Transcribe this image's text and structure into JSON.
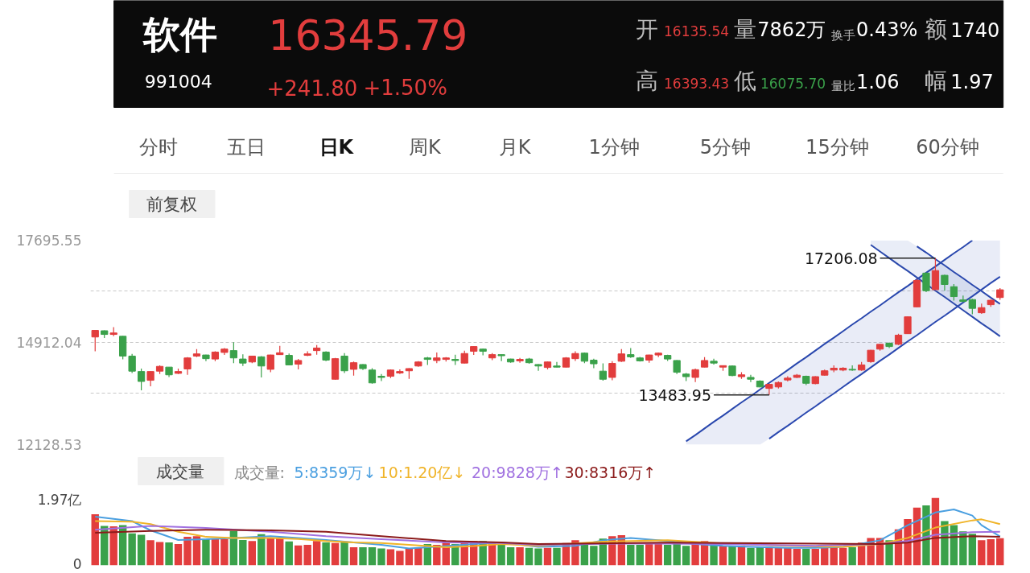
{
  "chart_data": [
    {
      "type": "other",
      "title": "软件",
      "subtitle": "991004",
      "annotations": [
        "16345.79",
        "+241.80",
        "+1.50%",
        "开",
        "16135.54",
        "量",
        "7862万",
        "换手",
        "0.43%",
        "额",
        "1740",
        "高",
        "16393.43",
        "低",
        "16075.70",
        "量比",
        "1.06",
        "幅",
        "1.97",
        "分时",
        "五日",
        "日K",
        "周K",
        "月K",
        "1分钟",
        "5分钟",
        "15分钟",
        "60分钟",
        "前复权"
      ]
    },
    {
      "type": "candlestick",
      "categories": [
        null,
        null,
        null,
        null,
        null,
        null,
        null,
        null,
        null,
        null,
        null,
        null,
        null,
        null,
        null,
        null,
        null,
        null,
        null,
        null,
        null,
        null,
        null,
        null,
        null,
        null,
        null,
        null,
        null,
        null,
        null,
        null,
        null,
        null,
        null,
        null,
        null,
        null,
        null,
        null,
        null,
        null,
        null,
        null,
        null,
        null,
        null,
        null,
        null,
        null,
        null,
        null,
        null,
        null,
        null,
        null,
        null,
        null,
        null,
        null,
        null,
        null,
        null,
        null,
        null,
        null,
        null,
        null,
        null,
        null,
        null,
        null,
        null,
        null,
        null,
        null,
        null,
        null,
        null,
        null,
        null,
        null,
        null,
        null,
        null,
        null,
        null,
        null,
        null,
        null,
        null,
        null,
        null,
        null,
        null,
        null,
        null,
        null,
        null
      ],
      "ohlc": [
        [
          15060,
          15240,
          14670,
          15240
        ],
        [
          15230,
          15240,
          15030,
          15130
        ],
        [
          15130,
          15330,
          15080,
          15170
        ],
        [
          15080,
          15090,
          14450,
          14540
        ],
        [
          14540,
          14600,
          14080,
          14130
        ],
        [
          14120,
          14200,
          13610,
          13850
        ],
        [
          13880,
          14130,
          13720,
          14120
        ],
        [
          14130,
          14290,
          14050,
          14260
        ],
        [
          14240,
          14240,
          13970,
          14030
        ],
        [
          14070,
          14200,
          14050,
          14120
        ],
        [
          14190,
          14510,
          14030,
          14490
        ],
        [
          14540,
          14730,
          14510,
          14600
        ],
        [
          14570,
          14580,
          14400,
          14470
        ],
        [
          14460,
          14670,
          14400,
          14650
        ],
        [
          14640,
          14760,
          14570,
          14730
        ],
        [
          14690,
          14920,
          14350,
          14490
        ],
        [
          14460,
          14590,
          14270,
          14350
        ],
        [
          14380,
          14550,
          14350,
          14540
        ],
        [
          14520,
          14540,
          13960,
          14270
        ],
        [
          14180,
          14580,
          14100,
          14570
        ],
        [
          14580,
          14820,
          14570,
          14630
        ],
        [
          14560,
          14610,
          14290,
          14300
        ],
        [
          14320,
          14460,
          14180,
          14420
        ],
        [
          14560,
          14670,
          14540,
          14600
        ],
        [
          14690,
          14840,
          14580,
          14760
        ],
        [
          14650,
          14670,
          14400,
          14430
        ],
        [
          13910,
          14490,
          13900,
          14470
        ],
        [
          14540,
          14620,
          14080,
          14140
        ],
        [
          14180,
          14390,
          14010,
          14360
        ],
        [
          14310,
          14320,
          14160,
          14200
        ],
        [
          14160,
          14210,
          13790,
          13810
        ],
        [
          13990,
          14050,
          13860,
          13960
        ],
        [
          13990,
          14180,
          13940,
          14160
        ],
        [
          14080,
          14180,
          14050,
          14120
        ],
        [
          14140,
          14210,
          13920,
          14200
        ],
        [
          14270,
          14400,
          14250,
          14380
        ],
        [
          14490,
          14520,
          14300,
          14450
        ],
        [
          14420,
          14640,
          14350,
          14490
        ],
        [
          14450,
          14510,
          14390,
          14490
        ],
        [
          14450,
          14580,
          14300,
          14420
        ],
        [
          14350,
          14690,
          14340,
          14610
        ],
        [
          14670,
          14810,
          14570,
          14800
        ],
        [
          14730,
          14740,
          14560,
          14670
        ],
        [
          14490,
          14620,
          14430,
          14580
        ],
        [
          14580,
          14580,
          14400,
          14550
        ],
        [
          14460,
          14470,
          14360,
          14380
        ],
        [
          14410,
          14490,
          14360,
          14450
        ],
        [
          14460,
          14490,
          14330,
          14360
        ],
        [
          14310,
          14320,
          14140,
          14270
        ],
        [
          14230,
          14390,
          14180,
          14380
        ],
        [
          14270,
          14380,
          14230,
          14240
        ],
        [
          14240,
          14510,
          14230,
          14490
        ],
        [
          14470,
          14670,
          14410,
          14610
        ],
        [
          14620,
          14640,
          14350,
          14400
        ],
        [
          14430,
          14470,
          14210,
          14330
        ],
        [
          14130,
          14340,
          13870,
          13910
        ],
        [
          13960,
          14400,
          13880,
          14340
        ],
        [
          14400,
          14730,
          14380,
          14600
        ],
        [
          14580,
          14760,
          14490,
          14520
        ],
        [
          14490,
          14520,
          14390,
          14410
        ],
        [
          14430,
          14580,
          14360,
          14570
        ],
        [
          14570,
          14640,
          14510,
          14620
        ],
        [
          14560,
          14580,
          14410,
          14460
        ],
        [
          14420,
          14430,
          14050,
          14100
        ],
        [
          14050,
          14080,
          13860,
          13980
        ],
        [
          13960,
          14200,
          13830,
          14170
        ],
        [
          14240,
          14510,
          14230,
          14420
        ],
        [
          14400,
          14470,
          14310,
          14350
        ],
        [
          14240,
          14280,
          14140,
          14280
        ],
        [
          14270,
          14290,
          13990,
          14010
        ],
        [
          13980,
          14100,
          13920,
          14030
        ],
        [
          13960,
          14030,
          13830,
          13910
        ],
        [
          13860,
          13880,
          13690,
          13700
        ],
        [
          13660,
          13790,
          13483.95,
          13770
        ],
        [
          13700,
          13850,
          13660,
          13820
        ],
        [
          13890,
          13990,
          13850,
          13940
        ],
        [
          13960,
          14050,
          13940,
          14020
        ],
        [
          13990,
          14010,
          13750,
          13800
        ],
        [
          13790,
          13990,
          13770,
          13980
        ],
        [
          14020,
          14170,
          14010,
          14140
        ],
        [
          14160,
          14290,
          14100,
          14210
        ],
        [
          14160,
          14240,
          14130,
          14210
        ],
        [
          14180,
          14290,
          14140,
          14160
        ],
        [
          14160,
          14380,
          14140,
          14300
        ],
        [
          14390,
          14710,
          14360,
          14700
        ],
        [
          14730,
          14870,
          14690,
          14860
        ],
        [
          14890,
          14910,
          14760,
          14800
        ],
        [
          14860,
          15150,
          14840,
          15110
        ],
        [
          15150,
          15620,
          15140,
          15610
        ],
        [
          15880,
          16630,
          15870,
          16600
        ],
        [
          16800,
          16820,
          16280,
          16320
        ],
        [
          16350,
          17206.08,
          16340,
          16870
        ],
        [
          16740,
          16760,
          16320,
          16490
        ],
        [
          16430,
          16500,
          16050,
          16160
        ],
        [
          16070,
          16190,
          16010,
          16030
        ],
        [
          16080,
          16100,
          15680,
          15840
        ],
        [
          15720,
          15970,
          15690,
          15860
        ],
        [
          15940,
          16080,
          15880,
          16060
        ],
        [
          16135.54,
          16393.43,
          16075.7,
          16345.79
        ]
      ],
      "ylim": [
        12128.53,
        17695.55
      ],
      "yticks": [
        17695.55,
        {
          "value": 16303.8,
          "label": null
        },
        14912.04,
        {
          "value": 13520.29,
          "label": null
        },
        12128.53
      ],
      "grid": "y",
      "series": [
        {
          "type": "line",
          "color": "#2a48ae",
          "values": [
            null,
            null,
            null,
            null,
            null,
            null,
            null,
            null,
            null,
            null,
            null,
            null,
            null,
            null,
            null,
            null,
            null,
            null,
            null,
            null,
            null,
            null,
            null,
            null,
            null,
            null,
            null,
            null,
            null,
            null,
            null,
            null,
            null,
            null,
            null,
            null,
            null,
            null,
            null,
            null,
            null,
            null,
            null,
            null,
            null,
            null,
            null,
            null,
            null,
            null,
            null,
            null,
            null,
            null,
            null,
            null,
            null,
            null,
            null,
            null,
            null,
            null,
            null,
            null,
            12220,
            12390,
            12570,
            12750,
            12920,
            13100,
            13280,
            13450,
            13630,
            13810,
            13980,
            14160,
            14340,
            14510,
            14690,
            14870,
            15040,
            15220,
            15400,
            15570,
            15750,
            15920,
            16100,
            16280,
            16450,
            16630,
            16810,
            16980,
            17160,
            17340,
            17510,
            17690,
            null,
            null,
            null
          ],
          "upper": [
            null,
            null,
            null,
            null,
            null,
            null,
            null,
            null,
            null,
            null,
            null,
            null,
            null,
            null,
            null,
            null,
            null,
            null,
            null,
            null,
            null,
            null,
            null,
            null,
            null,
            null,
            null,
            null,
            null,
            null,
            null,
            null,
            null,
            null,
            null,
            null,
            null,
            null,
            null,
            null,
            null,
            null,
            null,
            null,
            null,
            null,
            null,
            null,
            null,
            null,
            null,
            null,
            null,
            null,
            null,
            null,
            null,
            null,
            null,
            null,
            null,
            null,
            null,
            null,
            12220,
            12390,
            12570,
            12750,
            12920,
            13100,
            13280,
            13450,
            13630,
            13810,
            13980,
            14160,
            14340,
            14510,
            14690,
            14870,
            15040,
            15220,
            15400,
            15570,
            15750,
            15920,
            16100,
            16280,
            16450,
            16630,
            16810,
            16980,
            17160,
            17340,
            17510,
            17690,
            17690,
            17690,
            17690
          ],
          "lower": [
            null,
            null,
            null,
            null,
            null,
            null,
            null,
            null,
            null,
            null,
            null,
            null,
            null,
            null,
            null,
            null,
            null,
            null,
            null,
            null,
            null,
            null,
            null,
            null,
            null,
            null,
            null,
            null,
            null,
            null,
            null,
            null,
            null,
            null,
            null,
            null,
            null,
            null,
            null,
            null,
            null,
            null,
            null,
            null,
            null,
            null,
            null,
            null,
            null,
            null,
            null,
            null,
            null,
            null,
            null,
            null,
            null,
            null,
            null,
            null,
            null,
            null,
            null,
            null,
            12130,
            12130,
            12130,
            12130,
            12130,
            12130,
            12130,
            12130,
            12130,
            12290,
            12470,
            12640,
            12820,
            13000,
            13170,
            13350,
            13520,
            13700,
            13880,
            14050,
            14230,
            14410,
            14580,
            14760,
            14940,
            15110,
            15290,
            15470,
            15640,
            15820,
            16000,
            16170,
            16350,
            16530,
            16700
          ]
        },
        {
          "type": "line",
          "color": "#2b49b0",
          "values": [
            null,
            null,
            null,
            null,
            null,
            null,
            null,
            null,
            null,
            null,
            null,
            null,
            null,
            null,
            null,
            null,
            null,
            null,
            null,
            null,
            null,
            null,
            null,
            null,
            null,
            null,
            null,
            null,
            null,
            null,
            null,
            null,
            null,
            null,
            null,
            null,
            null,
            null,
            null,
            null,
            null,
            null,
            null,
            null,
            null,
            null,
            null,
            null,
            null,
            null,
            null,
            null,
            null,
            null,
            null,
            null,
            null,
            null,
            null,
            null,
            null,
            null,
            null,
            null,
            null,
            null,
            null,
            null,
            null,
            null,
            null,
            null,
            null,
            12290,
            12470,
            12640,
            12820,
            13000,
            13170,
            13350,
            13520,
            13700,
            13880,
            14050,
            14230,
            14410,
            14580,
            14760,
            14940,
            15110,
            15290,
            15470,
            15640,
            15820,
            16000,
            16170,
            16350,
            16530,
            16700
          ]
        },
        {
          "type": "line",
          "color": "#2c4aac",
          "values": [
            null,
            null,
            null,
            null,
            null,
            null,
            null,
            null,
            null,
            null,
            null,
            null,
            null,
            null,
            null,
            null,
            null,
            null,
            null,
            null,
            null,
            null,
            null,
            null,
            null,
            null,
            null,
            null,
            null,
            null,
            null,
            null,
            null,
            null,
            null,
            null,
            null,
            null,
            null,
            null,
            null,
            null,
            null,
            null,
            null,
            null,
            null,
            null,
            null,
            null,
            null,
            null,
            null,
            null,
            null,
            null,
            null,
            null,
            null,
            null,
            null,
            null,
            null,
            null,
            null,
            null,
            null,
            null,
            null,
            null,
            null,
            null,
            null,
            null,
            null,
            null,
            null,
            null,
            null,
            null,
            null,
            null,
            null,
            null,
            17570,
            17390,
            17210,
            17030,
            16860,
            16680,
            null,
            16320,
            16150,
            15970,
            15790,
            15610,
            15430,
            15260,
            15080
          ],
          "upper": [
            null,
            null,
            null,
            null,
            null,
            null,
            null,
            null,
            null,
            null,
            null,
            null,
            null,
            null,
            null,
            null,
            null,
            null,
            null,
            null,
            null,
            null,
            null,
            null,
            null,
            null,
            null,
            null,
            null,
            null,
            null,
            null,
            null,
            null,
            null,
            null,
            null,
            null,
            null,
            null,
            null,
            null,
            null,
            null,
            null,
            null,
            null,
            null,
            null,
            null,
            null,
            null,
            null,
            null,
            null,
            null,
            null,
            null,
            null,
            null,
            null,
            null,
            null,
            null,
            null,
            null,
            null,
            null,
            null,
            null,
            null,
            null,
            null,
            null,
            null,
            null,
            null,
            null,
            null,
            null,
            null,
            null,
            null,
            null,
            17690,
            17690,
            17690,
            17690,
            17690,
            17530,
            17360,
            17180,
            17010,
            16830,
            16660,
            16480,
            16310,
            16130,
            15960
          ],
          "lower": [
            null,
            null,
            null,
            null,
            null,
            null,
            null,
            null,
            null,
            null,
            null,
            null,
            null,
            null,
            null,
            null,
            null,
            null,
            null,
            null,
            null,
            null,
            null,
            null,
            null,
            null,
            null,
            null,
            null,
            null,
            null,
            null,
            null,
            null,
            null,
            null,
            null,
            null,
            null,
            null,
            null,
            null,
            null,
            null,
            null,
            null,
            null,
            null,
            null,
            null,
            null,
            null,
            null,
            null,
            null,
            null,
            null,
            null,
            null,
            null,
            null,
            null,
            null,
            null,
            null,
            null,
            null,
            null,
            null,
            null,
            null,
            null,
            null,
            null,
            null,
            null,
            null,
            null,
            null,
            null,
            null,
            null,
            null,
            null,
            17570,
            17390,
            17210,
            17030,
            16860,
            16680,
            16500,
            16320,
            16150,
            15970,
            15790,
            15610,
            15430,
            15260,
            15080
          ]
        },
        {
          "type": "line",
          "color": "#2947ad",
          "values": [
            null,
            null,
            null,
            null,
            null,
            null,
            null,
            null,
            null,
            null,
            null,
            null,
            null,
            null,
            null,
            null,
            null,
            null,
            null,
            null,
            null,
            null,
            null,
            null,
            null,
            null,
            null,
            null,
            null,
            null,
            null,
            null,
            null,
            null,
            null,
            null,
            null,
            null,
            null,
            null,
            null,
            null,
            null,
            null,
            null,
            null,
            null,
            null,
            null,
            null,
            null,
            null,
            null,
            null,
            null,
            null,
            null,
            null,
            null,
            null,
            null,
            null,
            null,
            null,
            null,
            null,
            null,
            null,
            null,
            null,
            null,
            null,
            null,
            null,
            null,
            null,
            null,
            null,
            null,
            null,
            null,
            null,
            null,
            null,
            null,
            null,
            null,
            null,
            null,
            17530,
            17360,
            17180,
            17010,
            16830,
            16660,
            16480,
            16310,
            16130,
            15960
          ]
        }
      ],
      "annotations": [
        "17206.08",
        "13483.95"
      ]
    },
    {
      "type": "bar",
      "title": "成交量",
      "legend_title": "成交量:",
      "legend": "top left",
      "categories": [
        null,
        null,
        null,
        null,
        null,
        null,
        null,
        null,
        null,
        null,
        null,
        null,
        null,
        null,
        null,
        null,
        null,
        null,
        null,
        null,
        null,
        null,
        null,
        null,
        null,
        null,
        null,
        null,
        null,
        null,
        null,
        null,
        null,
        null,
        null,
        null,
        null,
        null,
        null,
        null,
        null,
        null,
        null,
        null,
        null,
        null,
        null,
        null,
        null,
        null,
        null,
        null,
        null,
        null,
        null,
        null,
        null,
        null,
        null,
        null,
        null,
        null,
        null,
        null,
        null,
        null,
        null,
        null,
        null,
        null,
        null,
        null,
        null,
        null,
        null,
        null,
        null,
        null,
        null,
        null,
        null,
        null,
        null,
        null,
        null,
        null,
        null,
        null,
        null,
        null,
        null,
        null,
        null,
        null,
        null,
        null,
        null,
        null,
        null
      ],
      "ylim": [
        0,
        1.97
      ],
      "yticks": [
        {
          "value": 0,
          "label": "0"
        },
        {
          "value": 1.97,
          "label": "1.97亿"
        }
      ],
      "series": [
        {
          "type": "bar",
          "values": [
            1.49,
            1.15,
            1.14,
            1.17,
            0.93,
            0.89,
            0.73,
            0.68,
            0.67,
            0.62,
            0.83,
            0.85,
            0.77,
            0.77,
            0.76,
            1.0,
            0.74,
            0.71,
            0.91,
            0.8,
            0.8,
            0.7,
            0.58,
            0.6,
            0.71,
            0.67,
            0.65,
            0.67,
            0.53,
            0.53,
            0.53,
            0.49,
            0.47,
            0.42,
            0.49,
            0.51,
            0.62,
            0.6,
            0.67,
            0.62,
            0.67,
            0.71,
            0.71,
            0.67,
            0.6,
            0.53,
            0.53,
            0.51,
            0.49,
            0.51,
            0.51,
            0.65,
            0.73,
            0.66,
            0.57,
            0.78,
            0.85,
            0.88,
            0.6,
            0.6,
            0.62,
            0.62,
            0.6,
            0.62,
            0.57,
            0.62,
            0.71,
            0.62,
            0.57,
            0.57,
            0.57,
            0.51,
            0.54,
            0.54,
            0.51,
            0.51,
            0.48,
            0.48,
            0.48,
            0.51,
            0.53,
            0.51,
            0.53,
            0.66,
            0.8,
            0.8,
            0.73,
            1.05,
            1.35,
            1.68,
            1.75,
            1.97,
            1.29,
            1.17,
            0.99,
            0.92,
            0.73,
            0.76,
            0.79
          ],
          "colors": [
            "#e23d3d",
            "#3aa14a",
            "#e23d3d",
            "#3aa14a",
            "#3aa14a",
            "#3aa14a",
            "#e23d3d",
            "#e23d3d",
            "#3aa14a",
            "#e23d3d",
            "#e23d3d",
            "#e23d3d",
            "#3aa14a",
            "#e23d3d",
            "#e23d3d",
            "#3aa14a",
            "#3aa14a",
            "#e23d3d",
            "#3aa14a",
            "#e23d3d",
            "#e23d3d",
            "#3aa14a",
            "#e23d3d",
            "#e23d3d",
            "#e23d3d",
            "#3aa14a",
            "#e23d3d",
            "#3aa14a",
            "#e23d3d",
            "#3aa14a",
            "#3aa14a",
            "#3aa14a",
            "#e23d3d",
            "#e23d3d",
            "#e23d3d",
            "#e23d3d",
            "#3aa14a",
            "#e23d3d",
            "#e23d3d",
            "#3aa14a",
            "#e23d3d",
            "#e23d3d",
            "#3aa14a",
            "#e23d3d",
            "#3aa14a",
            "#3aa14a",
            "#e23d3d",
            "#3aa14a",
            "#3aa14a",
            "#e23d3d",
            "#3aa14a",
            "#e23d3d",
            "#e23d3d",
            "#3aa14a",
            "#3aa14a",
            "#3aa14a",
            "#e23d3d",
            "#e23d3d",
            "#3aa14a",
            "#3aa14a",
            "#e23d3d",
            "#e23d3d",
            "#3aa14a",
            "#3aa14a",
            "#3aa14a",
            "#e23d3d",
            "#e23d3d",
            "#3aa14a",
            "#e23d3d",
            "#3aa14a",
            "#e23d3d",
            "#3aa14a",
            "#3aa14a",
            "#e23d3d",
            "#e23d3d",
            "#e23d3d",
            "#e23d3d",
            "#3aa14a",
            "#e23d3d",
            "#e23d3d",
            "#e23d3d",
            "#e23d3d",
            "#3aa14a",
            "#e23d3d",
            "#e23d3d",
            "#e23d3d",
            "#3aa14a",
            "#e23d3d",
            "#e23d3d",
            "#e23d3d",
            "#3aa14a",
            "#e23d3d",
            "#3aa14a",
            "#3aa14a",
            "#3aa14a",
            "#3aa14a",
            "#e23d3d",
            "#e23d3d",
            "#e23d3d"
          ]
        },
        {
          "type": "line",
          "name": "5:8359万↓",
          "color": "#4a9fe0",
          "values": [
            1.42,
            null,
            null,
            null,
            1.29,
            null,
            1.02,
            null,
            null,
            0.74,
            null,
            null,
            0.76,
            null,
            null,
            0.8,
            null,
            null,
            null,
            0.85,
            null,
            null,
            0.8,
            null,
            null,
            0.74,
            null,
            null,
            0.67,
            null,
            null,
            0.6,
            null,
            null,
            0.49,
            null,
            null,
            null,
            0.56,
            null,
            null,
            0.62,
            null,
            null,
            0.67,
            null,
            null,
            null,
            0.54,
            null,
            null,
            null,
            0.57,
            null,
            null,
            0.73,
            null,
            null,
            0.8,
            null,
            null,
            null,
            0.71,
            null,
            null,
            0.62,
            null,
            null,
            0.57,
            null,
            null,
            0.54,
            null,
            null,
            null,
            0.51,
            null,
            null,
            0.51,
            null,
            null,
            0.54,
            null,
            null,
            null,
            0.73,
            null,
            null,
            1.17,
            null,
            null,
            1.54,
            null,
            1.63,
            null,
            1.45,
            1.17,
            null,
            0.84
          ]
        },
        {
          "type": "line",
          "name": "10:1.20亿↓",
          "color": "#f0b429",
          "values": [
            1.29,
            null,
            null,
            null,
            1.27,
            null,
            1.2,
            null,
            null,
            0.98,
            null,
            null,
            0.83,
            null,
            null,
            0.8,
            null,
            null,
            null,
            0.8,
            null,
            null,
            0.77,
            null,
            null,
            0.71,
            null,
            null,
            0.67,
            null,
            null,
            0.65,
            null,
            null,
            0.6,
            null,
            null,
            null,
            0.53,
            null,
            null,
            0.56,
            null,
            null,
            0.62,
            null,
            null,
            null,
            0.57,
            null,
            null,
            null,
            null,
            null,
            null,
            0.69,
            null,
            null,
            null,
            null,
            null,
            null,
            0.73,
            null,
            null,
            null,
            null,
            null,
            0.64,
            null,
            null,
            null,
            null,
            null,
            null,
            0.57,
            null,
            null,
            null,
            null,
            null,
            0.54,
            null,
            null,
            null,
            0.62,
            null,
            null,
            0.8,
            null,
            null,
            1.1,
            null,
            null,
            null,
            1.31,
            1.34,
            null,
            1.2
          ]
        },
        {
          "type": "line",
          "name": "20:9828万↑",
          "color": "#a070e0",
          "values": [
            1.04,
            null,
            null,
            null,
            null,
            null,
            1.15,
            null,
            null,
            null,
            null,
            null,
            1.09,
            null,
            null,
            null,
            null,
            null,
            null,
            0.98,
            null,
            null,
            null,
            null,
            null,
            0.85,
            null,
            null,
            null,
            null,
            null,
            0.76,
            null,
            null,
            null,
            null,
            null,
            null,
            0.67,
            null,
            null,
            null,
            null,
            null,
            0.65,
            null,
            null,
            null,
            0.6,
            null,
            null,
            null,
            null,
            null,
            null,
            null,
            null,
            null,
            0.64,
            null,
            null,
            null,
            null,
            null,
            null,
            null,
            null,
            null,
            0.62,
            null,
            null,
            null,
            null,
            null,
            null,
            null,
            null,
            null,
            0.57,
            null,
            null,
            null,
            null,
            null,
            null,
            0.62,
            null,
            null,
            0.71,
            null,
            null,
            0.89,
            null,
            null,
            null,
            0.97,
            null,
            null,
            0.98
          ]
        },
        {
          "type": "line",
          "name": "30:8316万↑",
          "color": "#8b1a1a",
          "values": [
            0.95,
            null,
            null,
            null,
            null,
            null,
            1.0,
            null,
            null,
            null,
            null,
            null,
            1.04,
            null,
            null,
            null,
            null,
            null,
            null,
            1.02,
            null,
            null,
            null,
            null,
            null,
            0.98,
            null,
            null,
            null,
            null,
            null,
            0.85,
            null,
            null,
            null,
            null,
            null,
            null,
            0.71,
            null,
            null,
            null,
            null,
            null,
            0.67,
            null,
            null,
            null,
            0.62,
            null,
            null,
            null,
            null,
            null,
            null,
            null,
            null,
            null,
            null,
            null,
            null,
            null,
            0.66,
            null,
            null,
            null,
            null,
            null,
            null,
            null,
            null,
            null,
            null,
            null,
            null,
            0.64,
            null,
            null,
            null,
            null,
            null,
            null,
            null,
            null,
            null,
            0.62,
            null,
            null,
            0.66,
            null,
            null,
            0.8,
            null,
            null,
            null,
            0.85,
            null,
            null,
            0.83
          ]
        }
      ]
    }
  ]
}
